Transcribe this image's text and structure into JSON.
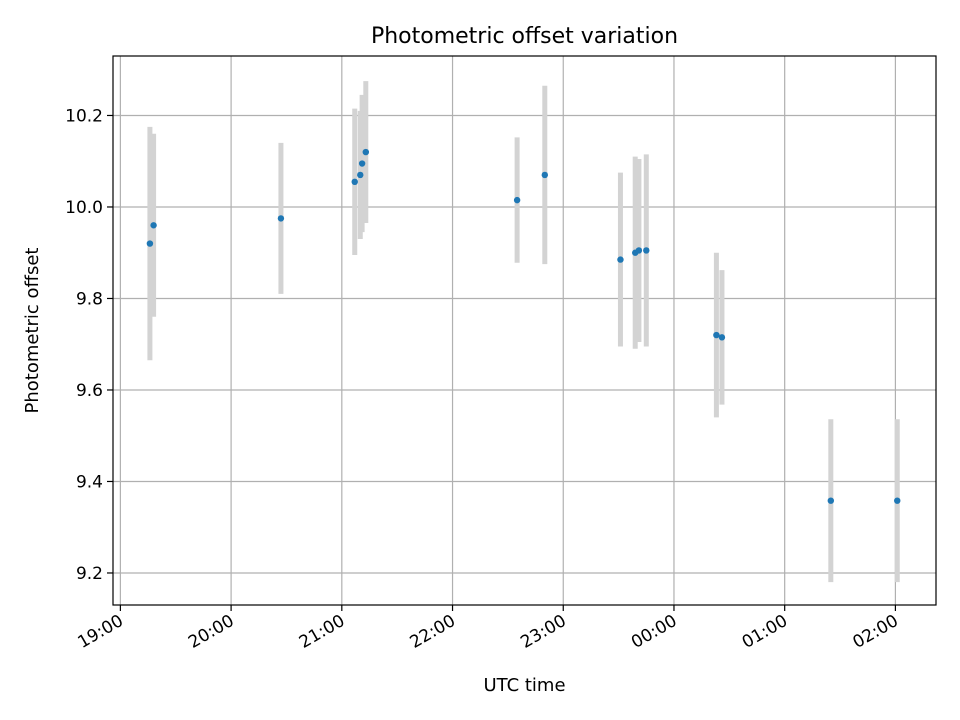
{
  "chart_data": {
    "type": "scatter",
    "title": "Photometric offset variation",
    "xlabel": "UTC time",
    "ylabel": "Photometric offset",
    "x_axis_kind": "time",
    "x_ticks": [
      "19:00",
      "20:00",
      "21:00",
      "22:00",
      "23:00",
      "00:00",
      "01:00",
      "02:00"
    ],
    "y_ticks": [
      "9.2",
      "9.4",
      "9.6",
      "9.8",
      "10.0",
      "10.2"
    ],
    "xlim": [
      "18:56",
      "02:22"
    ],
    "ylim": [
      9.13,
      10.33
    ],
    "grid": true,
    "point_color": "#1f77b4",
    "errorbar_color": "#d3d3d3",
    "points": [
      {
        "t": "19:16",
        "y": 9.92,
        "err": 0.255
      },
      {
        "t": "19:18",
        "y": 9.96,
        "err": 0.2
      },
      {
        "t": "20:27",
        "y": 9.975,
        "err": 0.165
      },
      {
        "t": "21:07",
        "y": 10.055,
        "err": 0.16
      },
      {
        "t": "21:10",
        "y": 10.07,
        "err": 0.14
      },
      {
        "t": "21:11",
        "y": 10.095,
        "err": 0.15
      },
      {
        "t": "21:13",
        "y": 10.12,
        "err": 0.155
      },
      {
        "t": "22:35",
        "y": 10.015,
        "err": 0.137
      },
      {
        "t": "22:50",
        "y": 10.07,
        "err": 0.195
      },
      {
        "t": "23:31",
        "y": 9.885,
        "err": 0.19
      },
      {
        "t": "23:39",
        "y": 9.9,
        "err": 0.21
      },
      {
        "t": "23:41",
        "y": 9.905,
        "err": 0.2
      },
      {
        "t": "23:45",
        "y": 9.905,
        "err": 0.21
      },
      {
        "t": "00:23",
        "y": 9.72,
        "err": 0.18
      },
      {
        "t": "00:26",
        "y": 9.715,
        "err": 0.147
      },
      {
        "t": "01:25",
        "y": 9.358,
        "err": 0.178
      },
      {
        "t": "02:01",
        "y": 9.358,
        "err": 0.178
      }
    ]
  }
}
